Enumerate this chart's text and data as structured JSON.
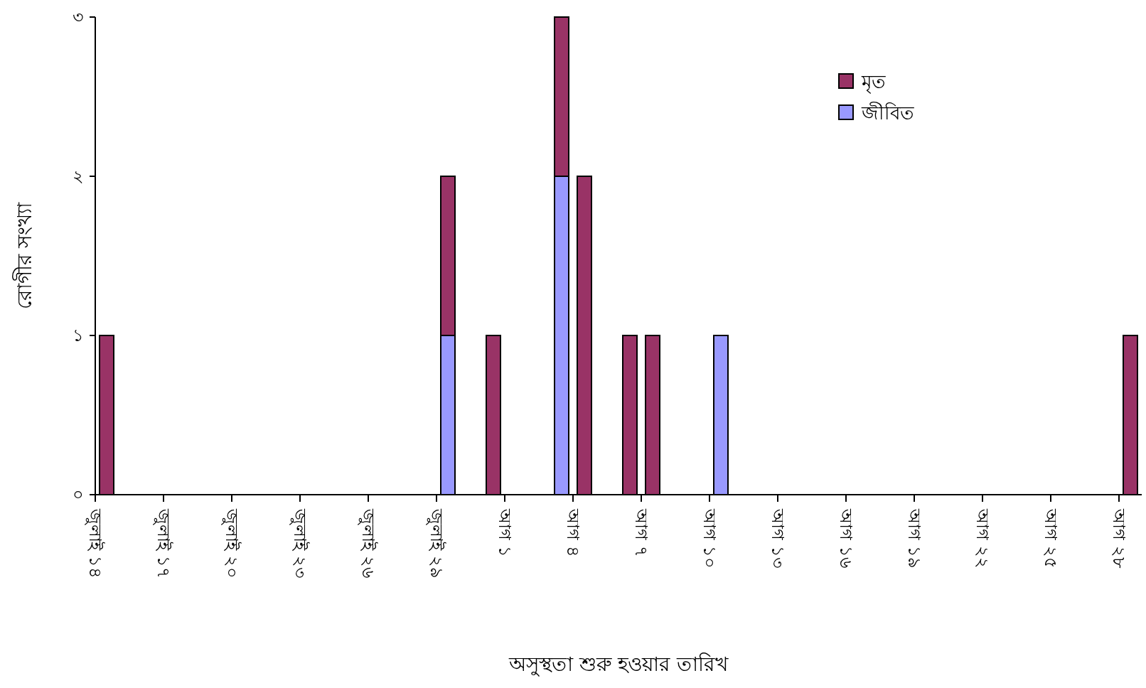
{
  "chart_data": {
    "type": "bar",
    "stacked": true,
    "ylabel": "রোগীর সংখ্যা",
    "xlabel": "অসুস্থতা শুরু হওয়ার তারিখ",
    "categories": [
      "জুলাই ১৪",
      null,
      null,
      "জুলাই ১৭",
      null,
      null,
      "জুলাই ২০",
      null,
      null,
      "জুলাই ২৩",
      null,
      null,
      "জুলাই ২৬",
      null,
      null,
      "জুলাই ২৯",
      null,
      null,
      "আগ ১",
      null,
      null,
      "আগ ৪",
      null,
      null,
      "আগ ৭",
      null,
      null,
      "আগ ১০",
      null,
      null,
      "আগ ১৩",
      null,
      null,
      "আগ ১৬",
      null,
      null,
      "আগ ১৯",
      null,
      null,
      "আগ ২২",
      null,
      null,
      "আগ ২৫",
      null,
      null,
      "আগ ২৮"
    ],
    "series": [
      {
        "name": "জীবিত",
        "color": "#9999ff",
        "values": [
          null,
          null,
          null,
          null,
          null,
          null,
          null,
          null,
          null,
          null,
          null,
          null,
          null,
          null,
          null,
          1,
          null,
          null,
          null,
          null,
          2,
          null,
          null,
          null,
          null,
          null,
          null,
          1,
          null,
          null,
          null,
          null,
          null,
          null,
          null,
          null,
          null,
          null,
          null,
          null,
          null,
          null,
          null,
          null,
          null,
          null
        ]
      },
      {
        "name": "মৃত",
        "color": "#993366",
        "values": [
          1,
          null,
          null,
          null,
          null,
          null,
          null,
          null,
          null,
          null,
          null,
          null,
          null,
          null,
          null,
          1,
          null,
          1,
          null,
          null,
          1,
          2,
          null,
          1,
          1,
          null,
          null,
          null,
          null,
          null,
          null,
          null,
          null,
          null,
          null,
          null,
          null,
          null,
          null,
          null,
          null,
          null,
          null,
          null,
          null,
          1
        ]
      }
    ],
    "ylim": [
      0,
      3
    ],
    "yticks": [
      {
        "value": 0,
        "label": "০"
      },
      {
        "value": 1,
        "label": "১"
      },
      {
        "value": 2,
        "label": "২"
      },
      {
        "value": 3,
        "label": "৩"
      }
    ],
    "legend": "top right"
  }
}
